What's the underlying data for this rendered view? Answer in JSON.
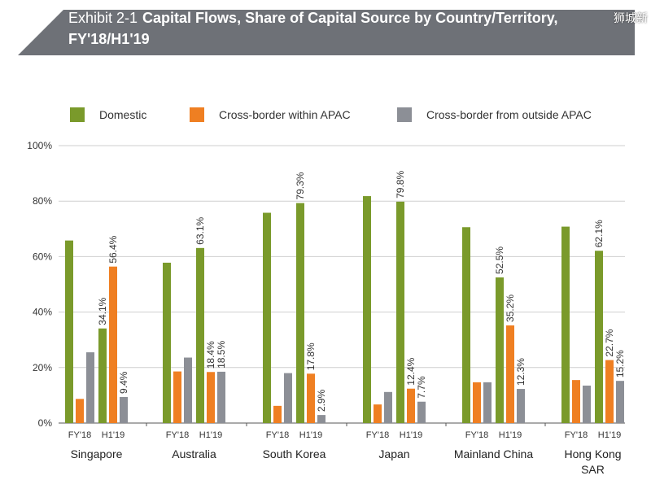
{
  "header": {
    "exhibit_label": "Exhibit 2-1",
    "title_line1": "Capital Flows, Share of Capital Source by Country/Territory,",
    "title_line2": "FY'18/H1'19",
    "watermark": "狮城新"
  },
  "colors": {
    "banner": "#6e7177",
    "domestic": "#7a9a2b",
    "within_apac": "#ef7f22",
    "outside_apac": "#8c8f96",
    "grid": "#cfcfcf",
    "axis": "#555555"
  },
  "chart_data": {
    "type": "bar",
    "ylim": [
      0,
      100
    ],
    "yticks": [
      0,
      20,
      40,
      60,
      80,
      100
    ],
    "ytick_labels": [
      "0%",
      "20%",
      "40%",
      "60%",
      "80%",
      "100%"
    ],
    "legend": {
      "position": "top"
    },
    "series": [
      {
        "name": "Domestic",
        "color": "#7a9a2b"
      },
      {
        "name": "Cross-border within APAC",
        "color": "#ef7f22"
      },
      {
        "name": "Cross-border from outside APAC",
        "color": "#8c8f96"
      }
    ],
    "groups": [
      {
        "label": "Singapore",
        "periods": [
          {
            "label": "FY'18",
            "values": [
              65.8,
              8.7,
              25.5
            ],
            "labels": [
              "",
              "",
              ""
            ]
          },
          {
            "label": "H1'19",
            "values": [
              34.1,
              56.4,
              9.4
            ],
            "labels": [
              "34.1%",
              "56.4%",
              "9.4%"
            ]
          }
        ]
      },
      {
        "label": "Australia",
        "periods": [
          {
            "label": "FY'18",
            "values": [
              57.8,
              18.6,
              23.6
            ],
            "labels": [
              "",
              "",
              ""
            ]
          },
          {
            "label": "H1'19",
            "values": [
              63.1,
              18.4,
              18.5
            ],
            "labels": [
              "63.1%",
              "18.4%",
              "18.5%"
            ]
          }
        ]
      },
      {
        "label": "South Korea",
        "periods": [
          {
            "label": "FY'18",
            "values": [
              75.8,
              6.2,
              18.0
            ],
            "labels": [
              "",
              "",
              ""
            ]
          },
          {
            "label": "H1'19",
            "values": [
              79.3,
              17.8,
              2.9
            ],
            "labels": [
              "79.3%",
              "17.8%",
              "2.9%"
            ]
          }
        ]
      },
      {
        "label": "Japan",
        "periods": [
          {
            "label": "FY'18",
            "values": [
              81.8,
              6.7,
              11.2
            ],
            "labels": [
              "",
              "",
              ""
            ]
          },
          {
            "label": "H1'19",
            "values": [
              79.8,
              12.4,
              7.7
            ],
            "labels": [
              "79.8%",
              "12.4%",
              "7.7%"
            ]
          }
        ]
      },
      {
        "label": "Mainland China",
        "periods": [
          {
            "label": "FY'18",
            "values": [
              70.6,
              14.7,
              14.7
            ],
            "labels": [
              "",
              "",
              ""
            ]
          },
          {
            "label": "H1'19",
            "values": [
              52.5,
              35.2,
              12.3
            ],
            "labels": [
              "52.5%",
              "35.2%",
              "12.3%"
            ]
          }
        ]
      },
      {
        "label": "Hong Kong SAR",
        "label_line1": "Hong Kong",
        "label_line2": "SAR",
        "periods": [
          {
            "label": "FY'18",
            "values": [
              70.8,
              15.5,
              13.5
            ],
            "labels": [
              "",
              "",
              ""
            ]
          },
          {
            "label": "H1'19",
            "values": [
              62.1,
              22.7,
              15.2
            ],
            "labels": [
              "62.1%",
              "22.7%",
              "15.2%"
            ]
          }
        ]
      }
    ]
  }
}
